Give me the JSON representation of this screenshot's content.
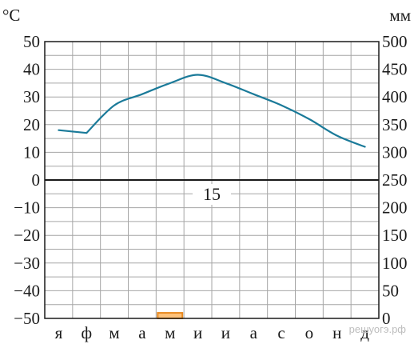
{
  "chart_data": {
    "type": "climate",
    "left_axis": {
      "unit": "°C",
      "ticks": [
        50,
        40,
        30,
        20,
        10,
        0,
        -10,
        -20,
        -30,
        -40,
        -50
      ],
      "ylim": [
        -50,
        50
      ]
    },
    "right_axis": {
      "unit": "мм",
      "ticks": [
        500,
        450,
        400,
        350,
        300,
        250,
        200,
        150,
        100,
        50,
        0
      ],
      "ylim": [
        0,
        500
      ]
    },
    "months": [
      "я",
      "ф",
      "м",
      "а",
      "м",
      "и",
      "и",
      "а",
      "с",
      "о",
      "н",
      "д"
    ],
    "temperature": {
      "values": [
        18,
        17,
        27,
        31,
        35,
        38,
        35,
        31,
        27,
        22,
        16,
        12
      ]
    },
    "precipitation": {
      "values": [
        0,
        0,
        0,
        0,
        10,
        0,
        0,
        0,
        0,
        0,
        0,
        0
      ]
    },
    "annotation": "15",
    "colors": {
      "line": "#1a7a99",
      "bar_fill": "#ffc27a",
      "bar_stroke": "#e8891f",
      "grid": "#a6a6a6",
      "axis": "#1a1a1a"
    },
    "grid": true
  },
  "watermark": "решуогэ.рф"
}
